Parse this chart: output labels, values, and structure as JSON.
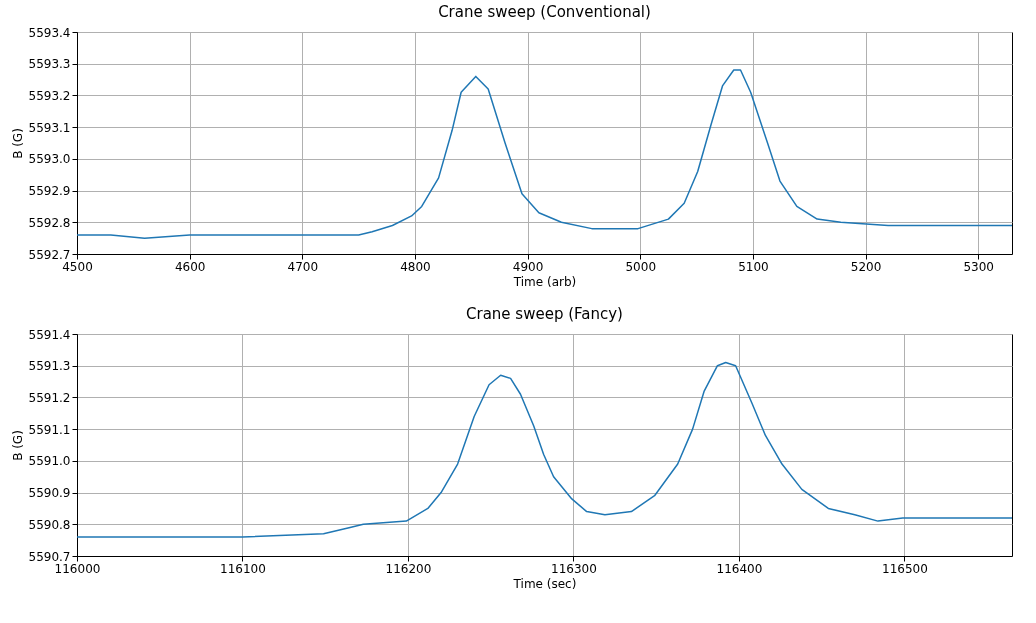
{
  "chart_data": [
    {
      "type": "line",
      "title": "Crane sweep (Conventional)",
      "xlabel": "Time (arb)",
      "ylabel": "B (G)",
      "xlim": [
        4500,
        5330
      ],
      "ylim": [
        5592.7,
        5593.4
      ],
      "xticks": [
        4500,
        4600,
        4700,
        4800,
        4900,
        5000,
        5100,
        5200,
        5300
      ],
      "yticks": [
        5592.7,
        5592.8,
        5592.9,
        {
          "value": 5593,
          "label": "5593.0"
        },
        5593.1,
        5593.2,
        5593.3,
        5593.4
      ],
      "grid": true,
      "x": [
        4500,
        4530,
        4560,
        4600,
        4650,
        4700,
        4750,
        4762,
        4780,
        4797,
        4806,
        4821,
        4833,
        4841,
        4854,
        4865,
        4880,
        4895,
        4910,
        4930,
        4957,
        4998,
        5025,
        5039,
        5051,
        5063,
        5073,
        5083,
        5089,
        5098,
        5113,
        5124,
        5139,
        5157,
        5178,
        5220,
        5260,
        5300,
        5330
      ],
      "series": [
        {
          "color": "#1f77b4",
          "values": [
            5592.76,
            5592.76,
            5592.75,
            5592.76,
            5592.76,
            5592.76,
            5592.76,
            5592.77,
            5592.79,
            5592.82,
            5592.85,
            5592.94,
            5593.09,
            5593.21,
            5593.26,
            5593.22,
            5593.05,
            5592.89,
            5592.83,
            5592.8,
            5592.78,
            5592.78,
            5592.81,
            5592.86,
            5592.96,
            5593.11,
            5593.23,
            5593.28,
            5593.28,
            5593.21,
            5593.05,
            5592.93,
            5592.85,
            5592.81,
            5592.8,
            5592.79,
            5592.79,
            5592.79,
            5592.79
          ]
        }
      ]
    },
    {
      "type": "line",
      "title": "Crane sweep (Fancy)",
      "xlabel": "Time (sec)",
      "ylabel": "B (G)",
      "xlim": [
        116000,
        116565
      ],
      "ylim": [
        5590.7,
        5591.4
      ],
      "xticks": [
        116000,
        116100,
        116200,
        116300,
        116400,
        116500
      ],
      "yticks": [
        5590.7,
        5590.8,
        5590.9,
        {
          "value": 5591,
          "label": "5591.0"
        },
        5591.1,
        5591.2,
        5591.3,
        5591.4
      ],
      "grid": true,
      "x": [
        116000,
        116050,
        116100,
        116149,
        116165,
        116173,
        116199,
        116212,
        116220,
        116230,
        116240,
        116249,
        116256,
        116262,
        116268,
        116276,
        116282,
        116288,
        116299,
        116308,
        116319,
        116335,
        116349,
        116363,
        116372,
        116379,
        116387,
        116392,
        116398,
        116408,
        116416,
        116426,
        116438,
        116454,
        116470,
        116484,
        116499,
        116530,
        116565
      ],
      "series": [
        {
          "color": "#1f77b4",
          "values": [
            5590.76,
            5590.76,
            5590.76,
            5590.77,
            5590.79,
            5590.8,
            5590.81,
            5590.85,
            5590.9,
            5590.99,
            5591.14,
            5591.24,
            5591.27,
            5591.26,
            5591.21,
            5591.11,
            5591.02,
            5590.95,
            5590.88,
            5590.84,
            5590.83,
            5590.84,
            5590.89,
            5590.99,
            5591.1,
            5591.22,
            5591.3,
            5591.31,
            5591.3,
            5591.18,
            5591.08,
            5590.99,
            5590.91,
            5590.85,
            5590.83,
            5590.81,
            5590.82,
            5590.82,
            5590.82
          ]
        }
      ]
    }
  ]
}
